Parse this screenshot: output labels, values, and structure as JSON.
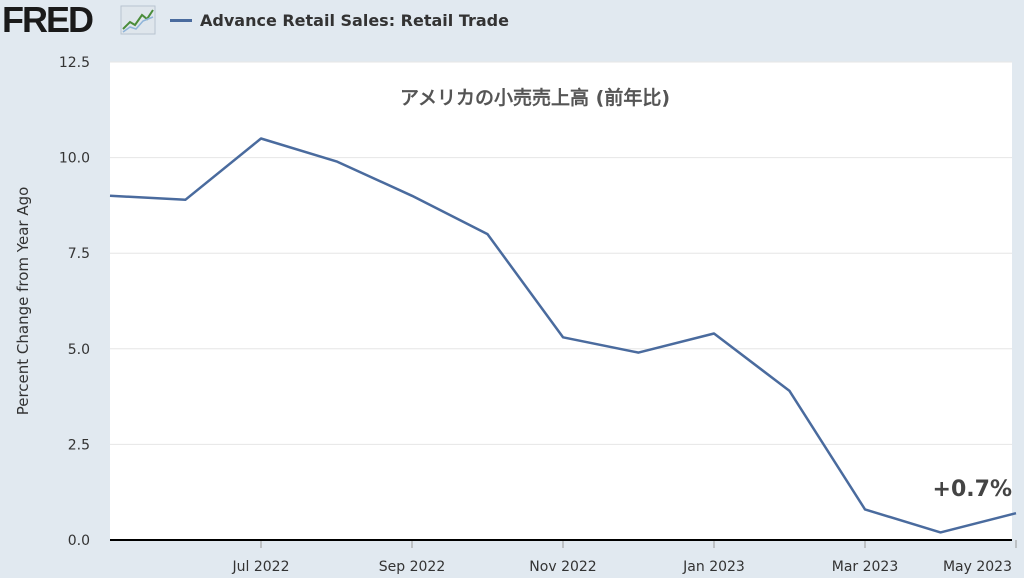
{
  "header": {
    "logo_text": "FRED",
    "logo_icon": "trend-line-icon",
    "legend_label": "Advance Retail Sales: Retail Trade",
    "line_color": "#4a6b9e"
  },
  "chart_data": {
    "type": "line",
    "title": "アメリカの小売売上高 (前年比)",
    "ylabel": "Percent Change from Year Ago",
    "xlabel": "",
    "ylim": [
      0,
      12.5
    ],
    "yticks": [
      "0.0",
      "2.5",
      "5.0",
      "7.5",
      "10.0",
      "12.5"
    ],
    "x": [
      "2022-05",
      "2022-06",
      "2022-07",
      "2022-08",
      "2022-09",
      "2022-10",
      "2022-11",
      "2022-12",
      "2023-01",
      "2023-02",
      "2023-03",
      "2023-04",
      "2023-05"
    ],
    "xtick_labels": [
      {
        "label": "Jul 2022",
        "index": 2
      },
      {
        "label": "Sep 2022",
        "index": 4
      },
      {
        "label": "Nov 2022",
        "index": 6
      },
      {
        "label": "Jan 2023",
        "index": 8
      },
      {
        "label": "Mar 2023",
        "index": 10
      },
      {
        "label": "May 2023",
        "index": 12
      }
    ],
    "series": [
      {
        "name": "Advance Retail Sales: Retail Trade",
        "values": [
          9.0,
          8.9,
          10.5,
          9.9,
          9.0,
          8.0,
          5.3,
          4.9,
          5.4,
          3.9,
          0.8,
          0.2,
          0.7
        ]
      }
    ],
    "annotation": {
      "text": "+0.7%",
      "index": 12
    },
    "grid": true,
    "legend": "top-left"
  }
}
